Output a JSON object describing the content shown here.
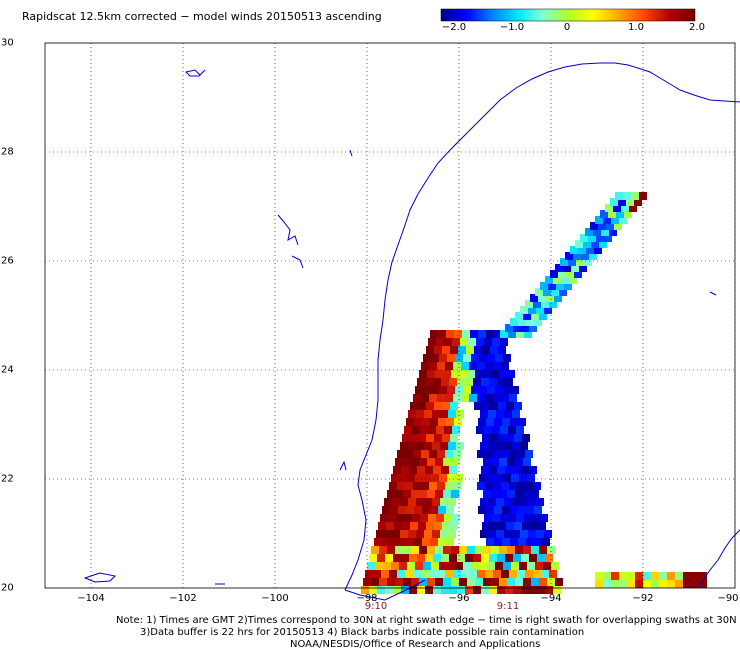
{
  "title": "Rapidscat 12.5km corrected − model winds 20150513 ascending",
  "colorbar": {
    "ticks": [
      "−2.0",
      "−1.0",
      "0",
      "1.0",
      "2.0"
    ],
    "stops": [
      "#00008b",
      "#0000ff",
      "#0080ff",
      "#00e5ff",
      "#7fffd4",
      "#adff2f",
      "#ffff00",
      "#ffa500",
      "#ff4500",
      "#b00000",
      "#7a0000"
    ]
  },
  "axes": {
    "x_ticks": [
      "−104",
      "−102",
      "−100",
      "−98",
      "−96",
      "−94",
      "−92",
      "−90"
    ],
    "y_ticks": [
      "30",
      "28",
      "26",
      "24",
      "22",
      "20"
    ],
    "lon_range": [
      -105,
      -90
    ],
    "lat_range": [
      20,
      30
    ]
  },
  "swath_times": [
    "9:10",
    "9:11"
  ],
  "notes": [
    "Note: 1) Times are GMT 2)Times correspond to 30N at right swath edge − time is right swath for overlapping swaths at 30N",
    "3)Data buffer is 22 hrs for 20150513 4) Black barbs indicate possible rain contamination",
    "NOAA/NESDIS/Office of Research and Applications"
  ]
}
